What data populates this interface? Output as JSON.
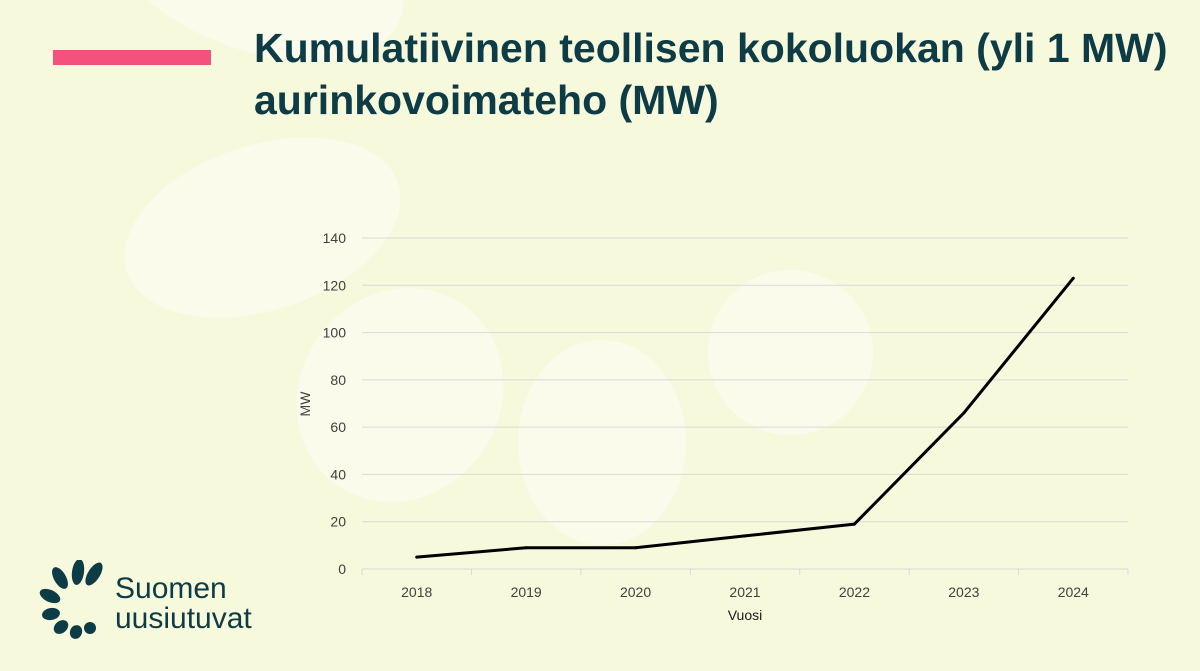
{
  "slide": {
    "title": "Kumulatiivinen teollisen kokoluokan (yli 1 MW) aurinkovoimateho (MW)",
    "accent_color": "#f2527d",
    "text_color": "#0d3b46",
    "background_color": "#f7f9dc"
  },
  "logo": {
    "line1": "Suomen",
    "line2": "uusiutuvat",
    "icon": "sunburst-petals-icon"
  },
  "chart_data": {
    "type": "line",
    "title": "",
    "xlabel": "Vuosi",
    "ylabel": "MW",
    "categories": [
      "2018",
      "2019",
      "2020",
      "2021",
      "2022",
      "2023",
      "2024"
    ],
    "series": [
      {
        "values": [
          5,
          9,
          9,
          14,
          19,
          66,
          123
        ],
        "color": "#000000"
      }
    ],
    "ylim": [
      0,
      140
    ],
    "yticks": [
      "0",
      "20",
      "40",
      "60",
      "80",
      "100",
      "120",
      "140"
    ],
    "grid": true,
    "legend": "none"
  }
}
